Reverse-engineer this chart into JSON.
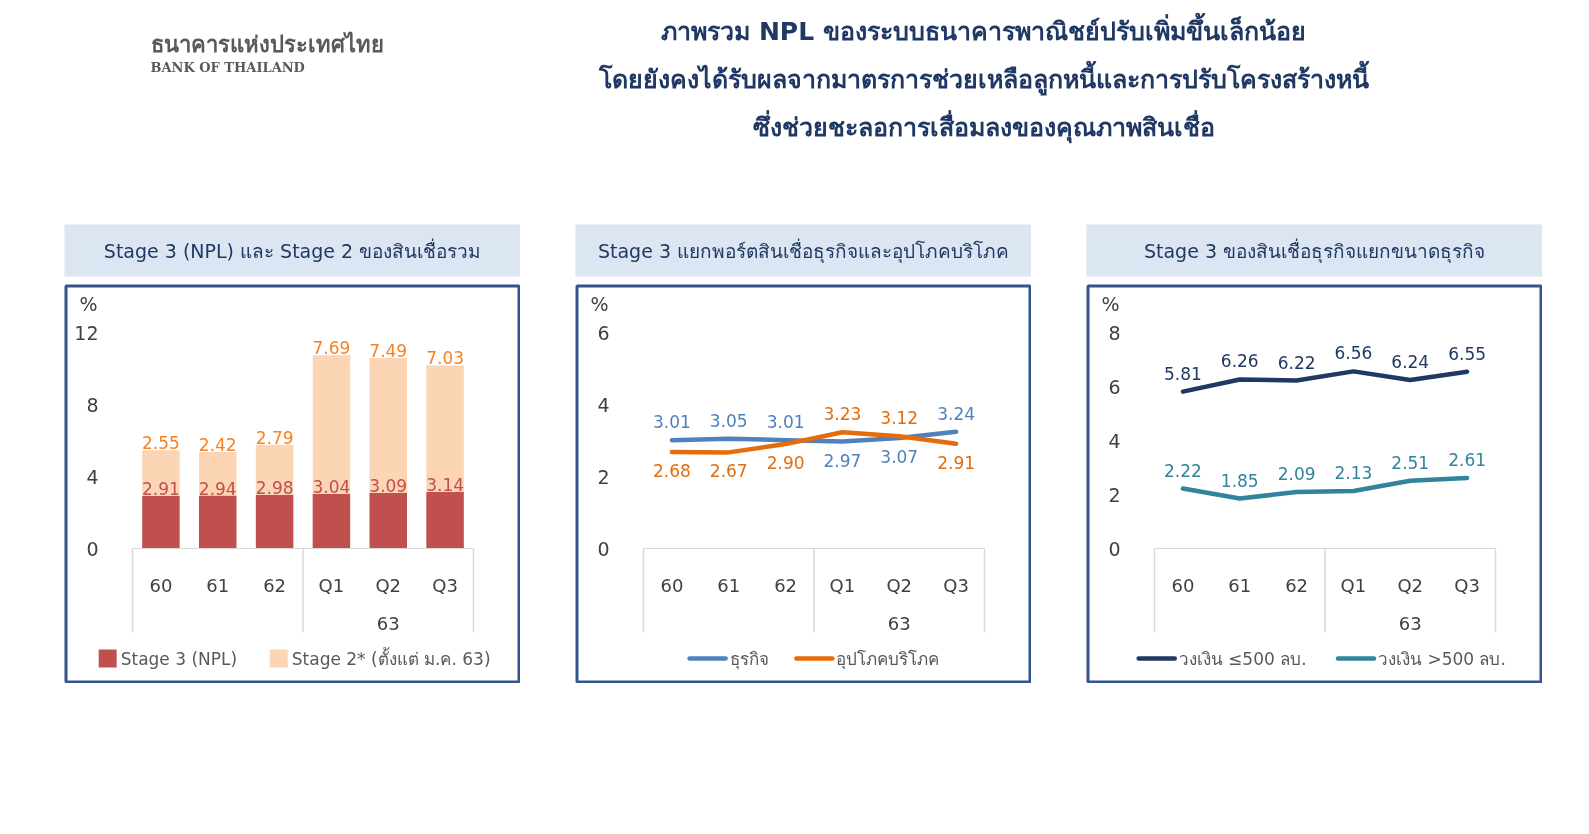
{
  "chart_data": [
    {
      "type": "other",
      "title": "ภาพรวม NPL ของระบบธนาคารพาณิชย์ปรับเพิ่มขึ้นเล็กน้อย\nโดยยังคงได้รับผลจากมาตรการช่วยเหลือลูกหนี้และการปรับโครงสร้างหนี้\nซึ่งช่วยชะลอการเสื่อมลงของคุณภาพสินเชื่อ",
      "annotations": [
        "ธนาคารแห่งประเทศไทย",
        "BANK OF THAILAND"
      ]
    },
    {
      "type": "bar",
      "title": "Stage 3 (NPL) และ Stage 2 ของสินเชื่อรวม",
      "ylabel": "%",
      "categories": [
        "60",
        "61",
        "62",
        "Q1",
        "Q2",
        "Q3"
      ],
      "stacked": true,
      "series": [
        {
          "name": "Stage 3 (NPL)",
          "color": "#c0504d",
          "values": [
            2.91,
            2.94,
            2.98,
            3.04,
            3.09,
            3.14
          ],
          "value_labels": [
            "2.91",
            "2.94",
            "2.98",
            "3.04",
            "3.09",
            "3.14"
          ]
        },
        {
          "name": "Stage 2* (ตั้งแต่ ม.ค. 63)",
          "color": "#fcd5b5",
          "values": [
            2.55,
            2.42,
            2.79,
            7.69,
            7.49,
            7.03
          ],
          "value_labels": [
            "2.55",
            "2.42",
            "2.79",
            "7.69",
            "7.49",
            "7.03"
          ]
        }
      ],
      "ylim": [
        0,
        12
      ],
      "yticks": [
        0,
        4,
        8,
        12
      ],
      "legend": "bottom",
      "annotations": [
        "63"
      ]
    },
    {
      "type": "line",
      "title": "Stage 3 แยกพอร์ตสินเชื่อธุรกิจและอุปโภคบริโภค",
      "ylabel": "%",
      "categories": [
        "60",
        "61",
        "62",
        "Q1",
        "Q2",
        "Q3"
      ],
      "series": [
        {
          "name": "ธุรกิจ",
          "color": "#4f81bd",
          "values": [
            3.01,
            3.05,
            3.01,
            2.97,
            3.07,
            3.24
          ],
          "value_labels": [
            "3.01",
            "3.05",
            "3.01",
            "2.97",
            "3.07",
            "3.24"
          ]
        },
        {
          "name": "อุปโภคบริโภค",
          "color": "#e46c0a",
          "values": [
            2.68,
            2.67,
            2.9,
            3.23,
            3.12,
            2.91
          ],
          "value_labels": [
            "2.68",
            "2.67",
            "2.90",
            "3.23",
            "3.12",
            "2.91"
          ]
        }
      ],
      "ylim": [
        0,
        6
      ],
      "yticks": [
        0,
        2,
        4,
        6
      ],
      "legend": "bottom",
      "annotations": [
        "63"
      ]
    },
    {
      "type": "line",
      "title": "Stage 3 ของสินเชื่อธุรกิจแยกขนาดธุรกิจ",
      "ylabel": "%",
      "categories": [
        "60",
        "61",
        "62",
        "Q1",
        "Q2",
        "Q3"
      ],
      "series": [
        {
          "name": "วงเงิน ≤500 ลบ.",
          "color": "#1f3864",
          "values": [
            5.81,
            6.26,
            6.22,
            6.56,
            6.24,
            6.55
          ],
          "value_labels": [
            "5.81",
            "6.26",
            "6.22",
            "6.56",
            "6.24",
            "6.55"
          ]
        },
        {
          "name": "วงเงิน >500 ลบ.",
          "color": "#31849b",
          "values": [
            2.22,
            1.85,
            2.09,
            2.13,
            2.51,
            2.61
          ],
          "value_labels": [
            "2.22",
            "1.85",
            "2.09",
            "2.13",
            "2.51",
            "2.61"
          ]
        }
      ],
      "ylim": [
        0,
        8
      ],
      "yticks": [
        0,
        2,
        4,
        6,
        8
      ],
      "legend": "bottom",
      "annotations": [
        "63"
      ]
    }
  ]
}
